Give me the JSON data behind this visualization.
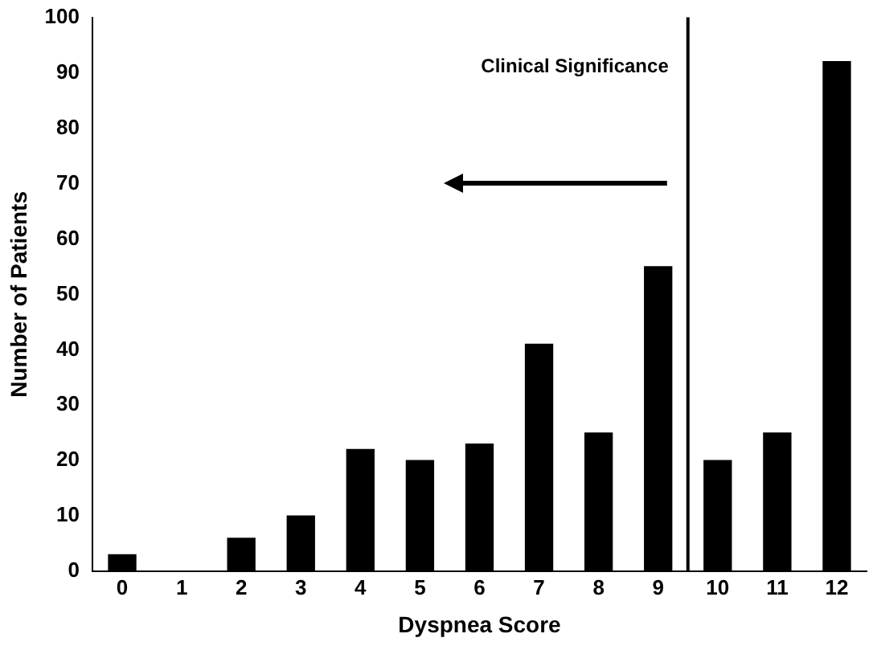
{
  "chart_data": {
    "type": "bar",
    "xlabel": "Dyspnea Score",
    "ylabel": "Number of Patients",
    "x": [
      0,
      1,
      2,
      3,
      4,
      5,
      6,
      7,
      8,
      9,
      10,
      11,
      12
    ],
    "values": [
      3,
      0,
      6,
      10,
      22,
      20,
      23,
      41,
      25,
      55,
      20,
      25,
      92
    ],
    "color": "#000000",
    "xlim": [
      -0.5,
      12.5
    ],
    "xticks": [
      0,
      1,
      2,
      3,
      4,
      5,
      6,
      7,
      8,
      9,
      10,
      11,
      12
    ],
    "ylim": [
      0,
      100
    ],
    "yticks": [
      0,
      10,
      20,
      30,
      40,
      50,
      60,
      70,
      80,
      90,
      100
    ],
    "grid": false,
    "legend": false,
    "ref_lines": [
      {
        "axis": "x",
        "value": 9.5,
        "color": "#000000"
      }
    ],
    "annotations": [
      "Clinical Significance"
    ]
  }
}
